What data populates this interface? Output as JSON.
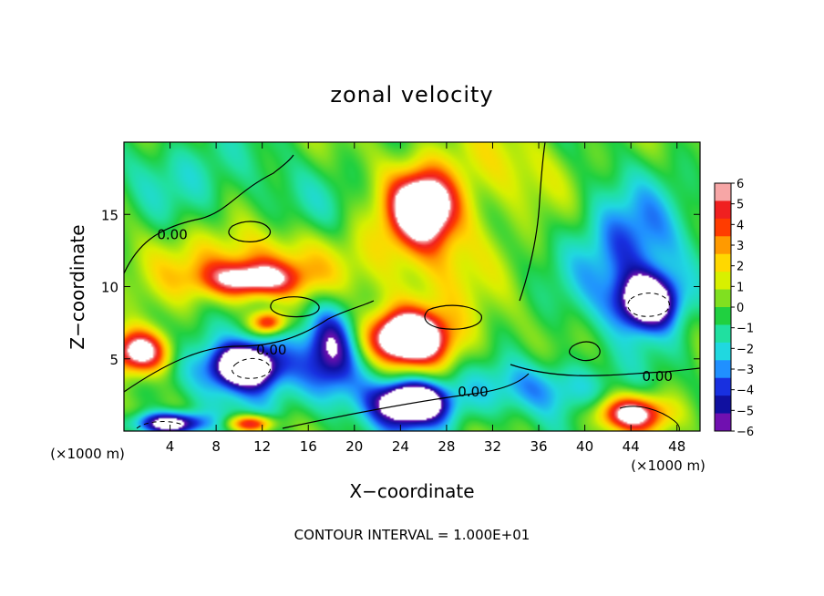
{
  "chart_data": {
    "type": "heatmap",
    "title": "zonal velocity",
    "xlabel": "X−coordinate",
    "ylabel": "Z−coordinate",
    "x_unit": "(×1000 m)",
    "x_unit_right": "(×1000 m)",
    "xlim": [
      0,
      50
    ],
    "ylim": [
      0,
      20
    ],
    "x_ticks": [
      4,
      8,
      12,
      16,
      20,
      24,
      28,
      32,
      36,
      40,
      44,
      48
    ],
    "y_ticks": [
      5,
      10,
      15
    ],
    "colorbar": {
      "min": -6,
      "max": 6,
      "ticks": [
        6,
        5,
        4,
        3,
        2,
        1,
        0,
        -1,
        -2,
        -3,
        -4,
        -5,
        -6
      ],
      "colors": [
        "#f7a6a6",
        "#f02020",
        "#ff3c00",
        "#ff9a00",
        "#ffd800",
        "#d8f000",
        "#80e020",
        "#20d040",
        "#20e0a0",
        "#20d8e0",
        "#2090ff",
        "#1830e0",
        "#1010a0",
        "#7010b0"
      ]
    },
    "contour_labels": [
      {
        "text": "0.00",
        "x": 4.2,
        "z": 13.6
      },
      {
        "text": "0.00",
        "x": 12.8,
        "z": 5.6
      },
      {
        "text": "0.00",
        "x": 30.3,
        "z": 2.7
      },
      {
        "text": "0.00",
        "x": 46.3,
        "z": 3.8
      }
    ],
    "features": [
      {
        "x": 26,
        "z": 15.5,
        "sx": 2.5,
        "sz": 2.2,
        "v": 8
      },
      {
        "x": 26,
        "z": 14,
        "sx": 5,
        "sz": 5,
        "v": 3
      },
      {
        "x": 11,
        "z": 10.5,
        "sx": 4,
        "sz": 1.2,
        "v": 6
      },
      {
        "x": 11,
        "z": 11.5,
        "sx": 8,
        "sz": 2.5,
        "v": 3
      },
      {
        "x": 1.5,
        "z": 5.5,
        "sx": 2.5,
        "sz": 1.5,
        "v": 8
      },
      {
        "x": 24.5,
        "z": 6.5,
        "sx": 3,
        "sz": 1.6,
        "v": 8
      },
      {
        "x": 25,
        "z": 6,
        "sx": 5,
        "sz": 3,
        "v": 4
      },
      {
        "x": 12.5,
        "z": 7.5,
        "sx": 1.5,
        "sz": 0.8,
        "v": 6
      },
      {
        "x": 10.5,
        "z": 4.5,
        "sx": 2.5,
        "sz": 1.3,
        "v": -8
      },
      {
        "x": 10.5,
        "z": 4.5,
        "sx": 5,
        "sz": 3,
        "v": -4
      },
      {
        "x": 25,
        "z": 2,
        "sx": 2.5,
        "sz": 1.2,
        "v": -8
      },
      {
        "x": 25,
        "z": 2,
        "sx": 5,
        "sz": 2.5,
        "v": -4
      },
      {
        "x": 45.5,
        "z": 9,
        "sx": 2.5,
        "sz": 1.8,
        "v": -8
      },
      {
        "x": 44,
        "z": 12,
        "sx": 5,
        "sz": 5,
        "v": -4
      },
      {
        "x": 44,
        "z": 1.2,
        "sx": 3,
        "sz": 1.2,
        "v": 7
      },
      {
        "x": 4,
        "z": 0.5,
        "sx": 3,
        "sz": 0.8,
        "v": -8
      },
      {
        "x": 11,
        "z": 0.5,
        "sx": 2,
        "sz": 0.6,
        "v": 6
      },
      {
        "x": 18,
        "z": 6,
        "sx": 2,
        "sz": 3,
        "v": -4
      },
      {
        "x": 20,
        "z": 5,
        "sx": 5,
        "sz": 4,
        "v": -2
      },
      {
        "x": 34,
        "z": 18,
        "sx": 5,
        "sz": 3,
        "v": 1.5
      },
      {
        "x": 36,
        "z": 3,
        "sx": 6,
        "sz": 2,
        "v": -3
      },
      {
        "x": 5,
        "z": 18,
        "sx": 6,
        "sz": 3,
        "v": -1.5
      },
      {
        "x": 15,
        "z": 16,
        "sx": 6,
        "sz": 3,
        "v": -1
      }
    ]
  },
  "footer": {
    "contour_interval": "CONTOUR INTERVAL = 1.000E+01"
  }
}
